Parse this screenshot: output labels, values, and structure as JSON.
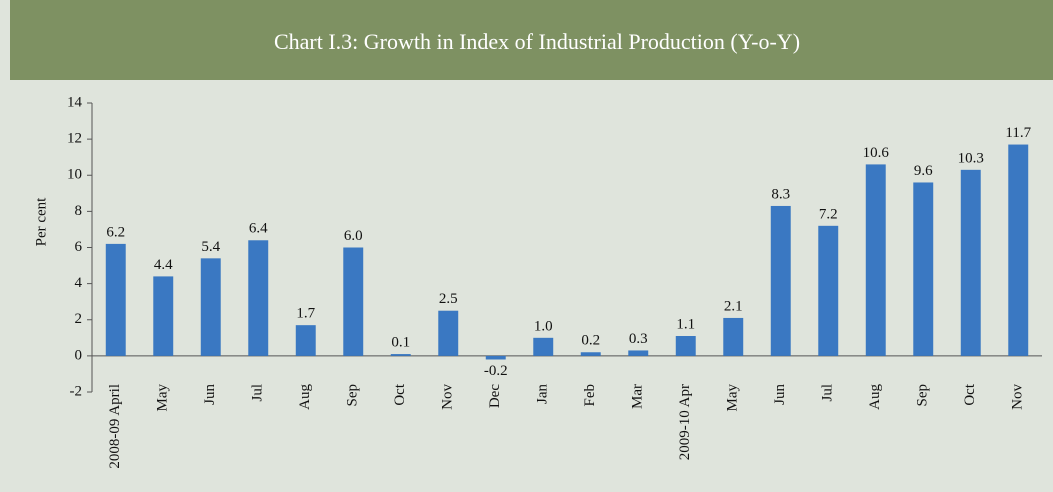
{
  "chart_data": {
    "type": "bar",
    "title": "Chart I.3: Growth in Index of Industrial Production (Y-o-Y)",
    "y_label": "Per cent",
    "categories": [
      "2008-09 April",
      "May",
      "Jun",
      "Jul",
      "Aug",
      "Sep",
      "Oct",
      "Nov",
      "Dec",
      "Jan",
      "Feb",
      "Mar",
      "2009-10 Apr",
      "May",
      "Jun",
      "Jul",
      "Aug",
      "Sep",
      "Oct",
      "Nov"
    ],
    "values": [
      6.2,
      4.4,
      5.4,
      6.4,
      1.7,
      6.0,
      0.1,
      2.5,
      -0.2,
      1.0,
      0.2,
      0.3,
      1.1,
      2.1,
      8.3,
      7.2,
      10.6,
      9.6,
      10.3,
      11.7
    ],
    "value_labels": [
      "6.2",
      "4.4",
      "5.4",
      "6.4",
      "1.7",
      "6.0",
      "0.1",
      "2.5",
      "-0.2",
      "1.0",
      "0.2",
      "0.3",
      "1.1",
      "2.1",
      "8.3",
      "7.2",
      "10.6",
      "9.6",
      "10.3",
      "11.7"
    ],
    "color": "#3a78c2",
    "ylim": [
      -2,
      14
    ],
    "yticks": [
      -2,
      0,
      2,
      4,
      6,
      8,
      10,
      12,
      14
    ],
    "grid": false
  }
}
